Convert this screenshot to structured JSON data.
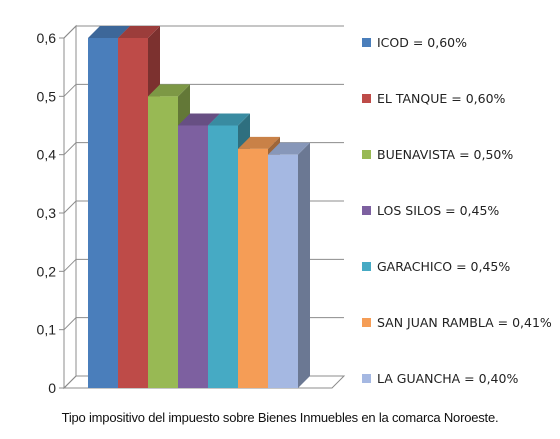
{
  "chart_data": {
    "type": "bar",
    "categories": [
      "ICOD",
      "EL TANQUE",
      "BUENAVISTA",
      "LOS SILOS",
      "GARACHICO",
      "SAN JUAN RAMBLA",
      "LA GUANCHA"
    ],
    "values": [
      0.6,
      0.6,
      0.5,
      0.45,
      0.45,
      0.41,
      0.4
    ],
    "ylim": [
      0,
      0.6
    ],
    "yticks": [
      "0",
      "0,1",
      "0,2",
      "0,3",
      "0,4",
      "0,5",
      "0,6"
    ],
    "grid": true,
    "legend_placement": "right",
    "legend": [
      "ICOD = 0,60%",
      "EL TANQUE = 0,60%",
      "BUENAVISTA = 0,50%",
      "LOS SILOS = 0,45%",
      "GARACHICO = 0,45%",
      "SAN JUAN RAMBLA = 0,41%",
      "LA GUANCHA = 0,40%"
    ],
    "colors": [
      "#4a7ebb",
      "#be4b48",
      "#98b954",
      "#7d60a0",
      "#46aac4",
      "#f59d56",
      "#a5b8e2"
    ],
    "caption": "Tipo impositivo del impuesto sobre Bienes Inmuebles en la comarca Noroeste."
  }
}
